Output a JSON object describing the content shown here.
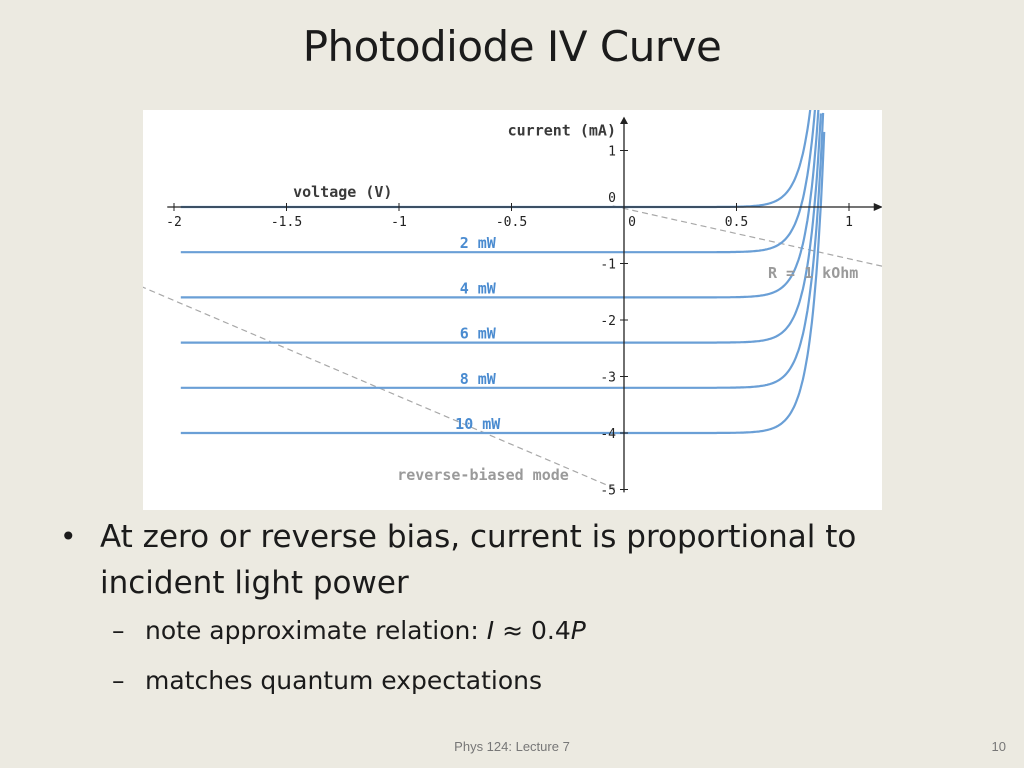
{
  "slide": {
    "title": "Photodiode IV Curve",
    "footer": "Phys 124: Lecture 7",
    "page_number": "10"
  },
  "bullets": {
    "main": "At zero or reverse bias, current is proportional to incident light power",
    "sub1_text": "note approximate relation: ",
    "sub1_I": "I",
    "sub1_approx": " ≈ 0.4",
    "sub1_P": "P",
    "sub2": "matches quantum expectations",
    "bullet_char": "•",
    "dash_char": "–"
  },
  "chart_data": {
    "type": "line",
    "xlabel": "voltage (V)",
    "ylabel": "current (mA)",
    "xlim": [
      -2,
      1.15
    ],
    "ylim": [
      -5,
      1.2
    ],
    "x_ticks": [
      "-2",
      "-1.5",
      "-1",
      "-0.5",
      "0",
      "0.5",
      "1"
    ],
    "y_ticks": [
      "1",
      "0",
      "-1",
      "-2",
      "-3",
      "-4",
      "-5"
    ],
    "series": [
      {
        "name": "",
        "photocurrent": 0
      },
      {
        "name": "2 mW",
        "photocurrent": -0.8
      },
      {
        "name": "4 mW",
        "photocurrent": -1.6
      },
      {
        "name": "6 mW",
        "photocurrent": -2.4
      },
      {
        "name": "8 mW",
        "photocurrent": -3.2
      },
      {
        "name": "10 mW",
        "photocurrent": -4.0
      }
    ],
    "load_line": {
      "label": "R = 1 kOhm",
      "slope_mA_per_V": -1
    },
    "region_label": "reverse-biased mode",
    "colors": {
      "curve": "#6a9fd6",
      "load_line": "#a8a8a8",
      "axis": "#222222"
    }
  }
}
